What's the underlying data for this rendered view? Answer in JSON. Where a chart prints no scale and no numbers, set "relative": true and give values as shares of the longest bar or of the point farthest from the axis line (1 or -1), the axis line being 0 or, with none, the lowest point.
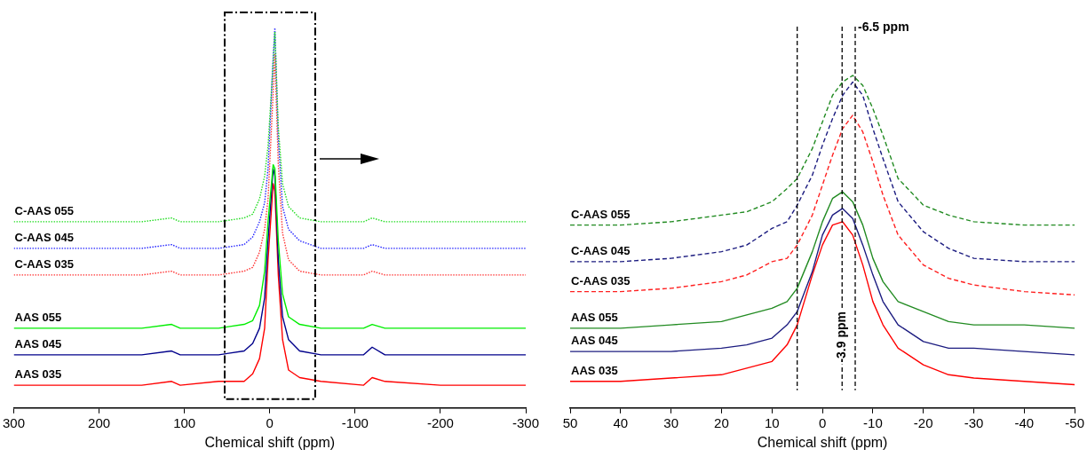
{
  "chart_data": [
    {
      "type": "line",
      "relative": true,
      "legend": false,
      "xlabel": "Chemical shift (ppm)",
      "xlim": [
        300,
        -300
      ],
      "xticks": [
        300,
        200,
        100,
        0,
        -100,
        -200,
        -300
      ],
      "x": [
        300,
        200,
        150,
        115,
        105,
        60,
        30,
        20,
        12,
        6,
        2,
        -4,
        -6,
        -10,
        -15,
        -22,
        -35,
        -60,
        -110,
        -120,
        -135,
        -200,
        -300
      ],
      "series": [
        {
          "name": "C-AAS 055",
          "color": "#22dd22",
          "line_style": "dotted",
          "values": [
            0.49,
            0.49,
            0.49,
            0.5,
            0.49,
            0.49,
            0.5,
            0.51,
            0.55,
            0.61,
            0.69,
            0.91,
            0.99,
            0.74,
            0.59,
            0.53,
            0.5,
            0.49,
            0.49,
            0.5,
            0.49,
            0.49,
            0.49
          ]
        },
        {
          "name": "C-AAS 045",
          "color": "#2222ff",
          "line_style": "dotted",
          "values": [
            0.42,
            0.42,
            0.42,
            0.43,
            0.42,
            0.42,
            0.43,
            0.45,
            0.49,
            0.54,
            0.63,
            0.92,
            1.0,
            0.71,
            0.53,
            0.47,
            0.44,
            0.42,
            0.42,
            0.43,
            0.42,
            0.42,
            0.42
          ]
        },
        {
          "name": "C-AAS 035",
          "color": "#ff3333",
          "line_style": "dotted",
          "values": [
            0.35,
            0.35,
            0.35,
            0.36,
            0.35,
            0.35,
            0.36,
            0.37,
            0.41,
            0.47,
            0.55,
            0.83,
            0.93,
            0.64,
            0.46,
            0.39,
            0.36,
            0.35,
            0.35,
            0.36,
            0.35,
            0.35,
            0.35
          ]
        },
        {
          "name": "AAS 055",
          "color": "#00ee00",
          "line_style": "solid",
          "values": [
            0.21,
            0.21,
            0.21,
            0.22,
            0.21,
            0.21,
            0.22,
            0.23,
            0.27,
            0.36,
            0.49,
            0.64,
            0.63,
            0.44,
            0.3,
            0.24,
            0.22,
            0.21,
            0.21,
            0.22,
            0.21,
            0.21,
            0.21
          ]
        },
        {
          "name": "AAS 045",
          "color": "#00008b",
          "line_style": "solid",
          "values": [
            0.14,
            0.14,
            0.14,
            0.15,
            0.14,
            0.14,
            0.15,
            0.17,
            0.21,
            0.29,
            0.44,
            0.63,
            0.61,
            0.39,
            0.24,
            0.18,
            0.15,
            0.14,
            0.14,
            0.16,
            0.14,
            0.14,
            0.14
          ]
        },
        {
          "name": "AAS 035",
          "color": "#ff0000",
          "line_style": "solid",
          "values": [
            0.06,
            0.06,
            0.06,
            0.07,
            0.06,
            0.07,
            0.07,
            0.09,
            0.13,
            0.21,
            0.39,
            0.59,
            0.57,
            0.35,
            0.18,
            0.1,
            0.08,
            0.07,
            0.06,
            0.08,
            0.07,
            0.06,
            0.06
          ]
        }
      ]
    },
    {
      "type": "line",
      "relative": true,
      "legend": false,
      "xlabel": "Chemical shift (ppm)",
      "xlim": [
        50,
        -50
      ],
      "xticks": [
        50,
        40,
        30,
        20,
        10,
        0,
        -10,
        -20,
        -30,
        -40,
        -50
      ],
      "x": [
        50,
        40,
        30,
        20,
        15,
        10,
        7,
        5,
        2,
        0,
        -2,
        -4,
        -6,
        -8,
        -10,
        -12,
        -15,
        -20,
        -25,
        -30,
        -40,
        -50
      ],
      "ref_lines": [
        {
          "axis": "x",
          "value": -6.5,
          "label": "-6.5 ppm",
          "line_style": "dashed"
        },
        {
          "axis": "x",
          "value": -3.9,
          "label": "-3.9 ppm",
          "line_style": "dashed"
        },
        {
          "axis": "x",
          "value": 5,
          "line_style": "dashed"
        }
      ],
      "series": [
        {
          "name": "C-AAS 055",
          "color": "#228b22",
          "line_style": "dashed",
          "values": [
            0.55,
            0.55,
            0.56,
            0.58,
            0.59,
            0.62,
            0.66,
            0.69,
            0.78,
            0.86,
            0.94,
            0.98,
            1.0,
            0.97,
            0.9,
            0.82,
            0.69,
            0.61,
            0.58,
            0.56,
            0.55,
            0.55
          ]
        },
        {
          "name": "C-AAS 045",
          "color": "#1c1c80",
          "line_style": "dashed",
          "values": [
            0.44,
            0.44,
            0.45,
            0.47,
            0.49,
            0.54,
            0.56,
            0.61,
            0.7,
            0.79,
            0.87,
            0.94,
            0.98,
            0.94,
            0.84,
            0.75,
            0.62,
            0.53,
            0.48,
            0.45,
            0.44,
            0.44
          ]
        },
        {
          "name": "C-AAS 035",
          "color": "#ff2020",
          "line_style": "dashed",
          "values": [
            0.35,
            0.35,
            0.36,
            0.38,
            0.4,
            0.44,
            0.45,
            0.49,
            0.58,
            0.67,
            0.76,
            0.84,
            0.88,
            0.83,
            0.74,
            0.64,
            0.52,
            0.43,
            0.39,
            0.37,
            0.35,
            0.34
          ]
        },
        {
          "name": "AAS 055",
          "color": "#228b22",
          "line_style": "solid",
          "values": [
            0.24,
            0.24,
            0.25,
            0.26,
            0.28,
            0.3,
            0.32,
            0.36,
            0.47,
            0.56,
            0.63,
            0.65,
            0.62,
            0.55,
            0.45,
            0.38,
            0.32,
            0.29,
            0.26,
            0.25,
            0.25,
            0.24
          ]
        },
        {
          "name": "AAS 045",
          "color": "#1c1c80",
          "line_style": "solid",
          "values": [
            0.17,
            0.17,
            0.17,
            0.18,
            0.19,
            0.21,
            0.25,
            0.29,
            0.41,
            0.52,
            0.58,
            0.6,
            0.57,
            0.49,
            0.4,
            0.32,
            0.25,
            0.2,
            0.18,
            0.18,
            0.17,
            0.16
          ]
        },
        {
          "name": "AAS 035",
          "color": "#ff0000",
          "line_style": "solid",
          "values": [
            0.08,
            0.08,
            0.09,
            0.1,
            0.12,
            0.14,
            0.19,
            0.25,
            0.4,
            0.49,
            0.55,
            0.56,
            0.52,
            0.43,
            0.32,
            0.25,
            0.18,
            0.13,
            0.1,
            0.09,
            0.08,
            0.07
          ]
        }
      ]
    }
  ]
}
